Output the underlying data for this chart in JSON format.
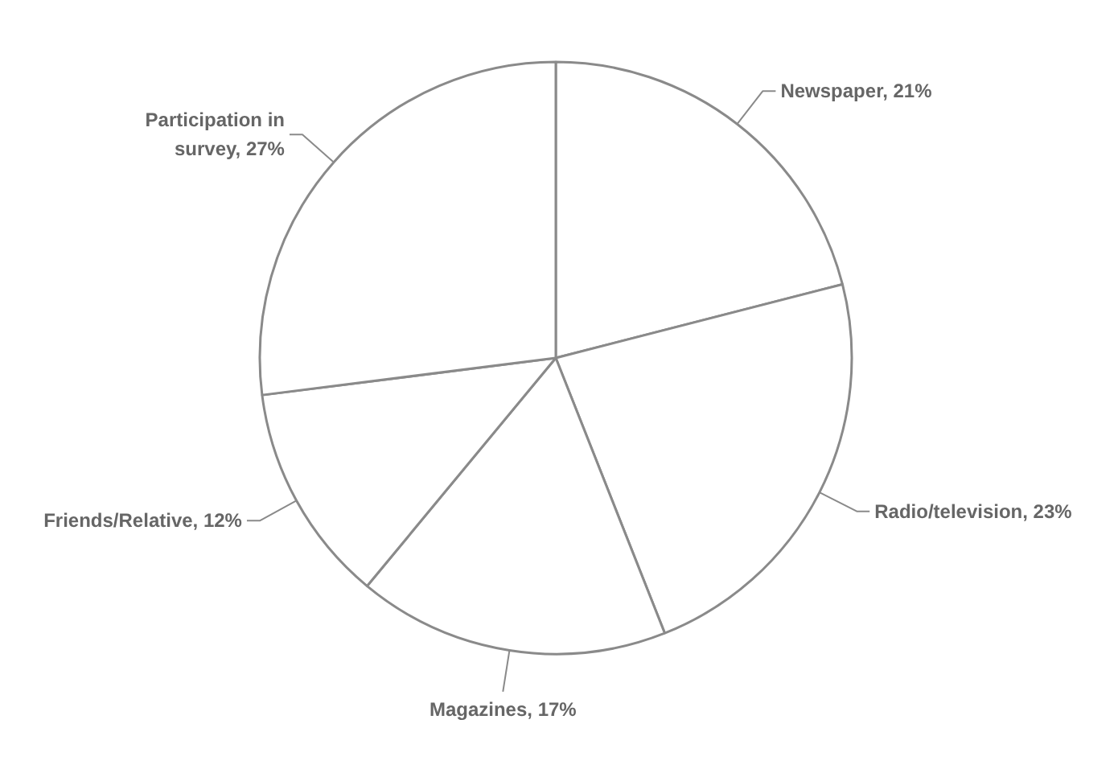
{
  "chart_data": {
    "type": "pie",
    "categories": [
      "Newspaper",
      "Radio/television",
      "Magazines",
      "Friends/Relative",
      "Participation in survey"
    ],
    "values": [
      21,
      23,
      17,
      12,
      27
    ],
    "value_labels": [
      "21%",
      "23%",
      "17%",
      "12%",
      "27%"
    ],
    "colors": [
      "#ffffff",
      "#ffffff",
      "#ffffff",
      "#ffffff",
      "#ffffff"
    ]
  }
}
